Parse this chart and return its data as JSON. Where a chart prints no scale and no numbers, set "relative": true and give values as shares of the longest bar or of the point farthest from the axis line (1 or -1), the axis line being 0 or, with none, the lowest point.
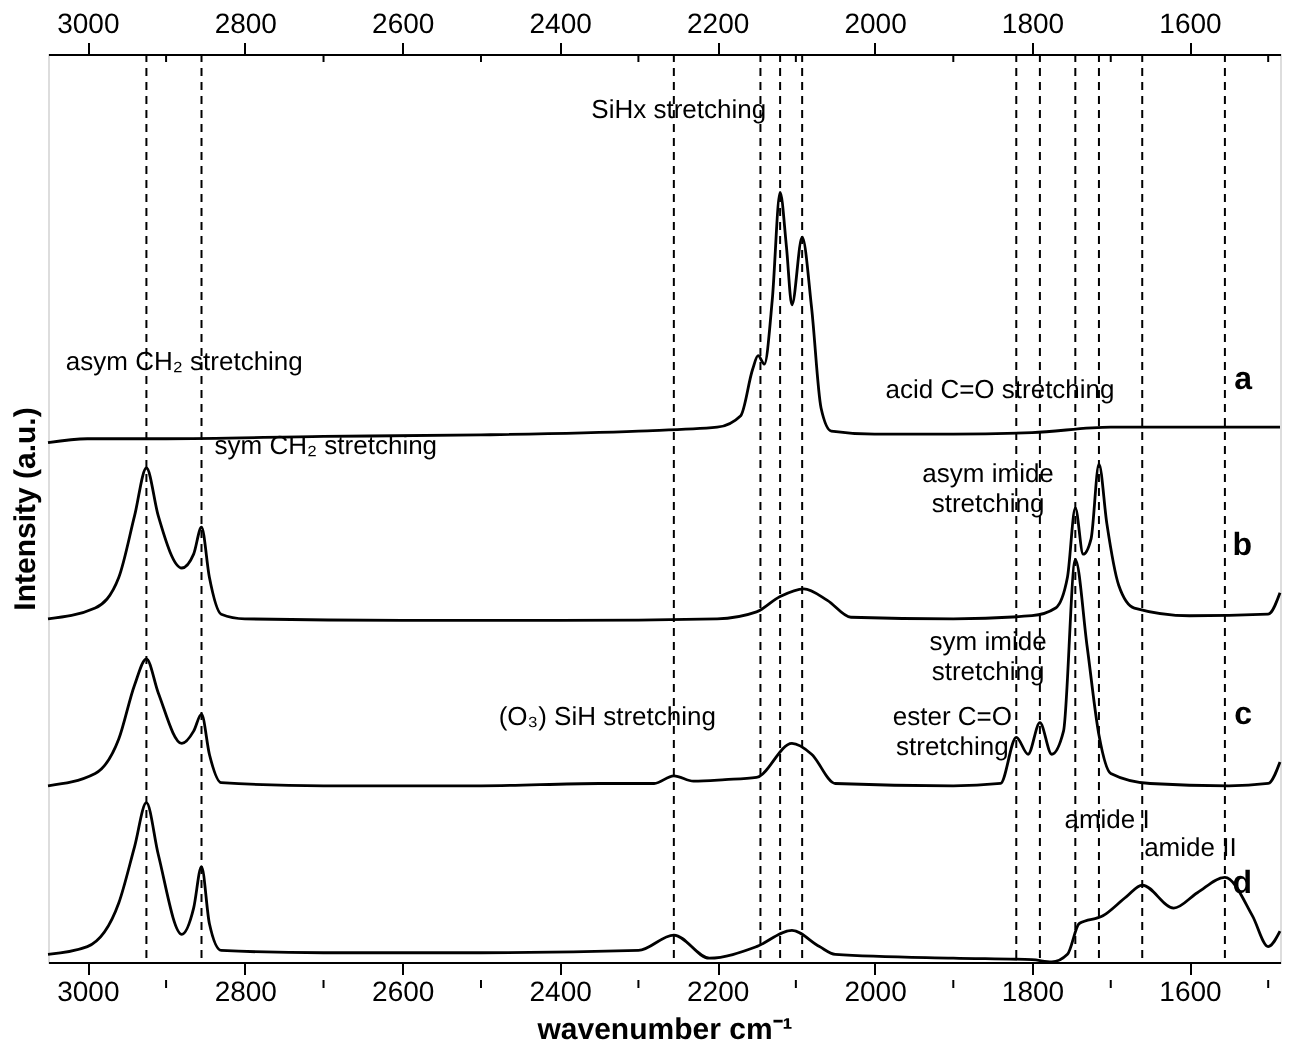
{
  "chart_data": {
    "type": "line",
    "relative": true,
    "xlabel": "wavenumber cm⁻¹",
    "ylabel": "Intensity (a.u.)",
    "xlim": [
      3050,
      1485
    ],
    "x2lim": [
      3050,
      1485
    ],
    "xticks": [
      3000,
      {
        "value": 2900,
        "label": null
      },
      2800,
      {
        "value": 2700,
        "label": null
      },
      2600,
      {
        "value": 2500,
        "label": null
      },
      2400,
      {
        "value": 2300,
        "label": null
      },
      2200,
      {
        "value": 2100,
        "label": null
      },
      2000,
      {
        "value": 1900,
        "label": null
      },
      1800,
      {
        "value": 1700,
        "label": null
      },
      1600,
      {
        "value": 1500,
        "label": null
      }
    ],
    "x2ticks": [
      3000,
      {
        "value": 2900,
        "label": null
      },
      2800,
      {
        "value": 2700,
        "label": null
      },
      2600,
      {
        "value": 2500,
        "label": null
      },
      2400,
      {
        "value": 2300,
        "label": null
      },
      2200,
      {
        "value": 2100,
        "label": null
      },
      2000,
      {
        "value": 1900,
        "label": null
      },
      1800,
      {
        "value": 1700,
        "label": null
      },
      1600,
      {
        "value": 1500,
        "label": null
      }
    ],
    "grid": false,
    "legend": false,
    "line_style": "solid",
    "marker": "none",
    "series": [
      {
        "name": "a",
        "color": "#000000",
        "x": [
          3050,
          3000,
          2900,
          2700,
          2500,
          2300,
          2200,
          2170,
          2155,
          2148,
          2140,
          2130,
          2120,
          2112,
          2105,
          2092,
          2080,
          2068,
          2055,
          2000,
          1900,
          1800,
          1700,
          1600,
          1485
        ],
        "values": [
          0.675,
          0.68,
          0.68,
          0.683,
          0.685,
          0.69,
          0.695,
          0.71,
          0.77,
          0.788,
          0.777,
          0.86,
          1.0,
          0.93,
          0.854,
          0.942,
          0.85,
          0.72,
          0.69,
          0.686,
          0.686,
          0.688,
          0.695,
          0.695,
          0.695
        ]
      },
      {
        "name": "b",
        "color": "#000000",
        "x": [
          3050,
          2990,
          2960,
          2940,
          2925,
          2910,
          2880,
          2865,
          2855,
          2845,
          2830,
          2800,
          2600,
          2400,
          2200,
          2150,
          2120,
          2090,
          2060,
          2030,
          1900,
          1800,
          1770,
          1755,
          1745,
          1735,
          1725,
          1715,
          1705,
          1690,
          1670,
          1600,
          1500,
          1485
        ],
        "values": [
          0.446,
          0.46,
          0.5,
          0.58,
          0.642,
          0.58,
          0.512,
          0.53,
          0.565,
          0.5,
          0.452,
          0.446,
          0.444,
          0.444,
          0.446,
          0.455,
          0.475,
          0.485,
          0.47,
          0.448,
          0.446,
          0.45,
          0.46,
          0.5,
          0.59,
          0.53,
          0.55,
          0.647,
          0.57,
          0.49,
          0.46,
          0.45,
          0.452,
          0.48
        ]
      },
      {
        "name": "c",
        "color": "#000000",
        "x": [
          3050,
          2990,
          2960,
          2940,
          2925,
          2910,
          2880,
          2865,
          2855,
          2845,
          2830,
          2700,
          2500,
          2350,
          2280,
          2255,
          2230,
          2190,
          2150,
          2105,
          2080,
          2050,
          1900,
          1840,
          1820,
          1805,
          1790,
          1775,
          1760,
          1745,
          1730,
          1715,
          1700,
          1650,
          1550,
          1500,
          1485
        ],
        "values": [
          0.229,
          0.245,
          0.29,
          0.36,
          0.394,
          0.35,
          0.284,
          0.3,
          0.322,
          0.27,
          0.233,
          0.229,
          0.229,
          0.232,
          0.232,
          0.242,
          0.235,
          0.237,
          0.24,
          0.284,
          0.27,
          0.232,
          0.229,
          0.232,
          0.292,
          0.27,
          0.311,
          0.27,
          0.3,
          0.523,
          0.41,
          0.295,
          0.245,
          0.232,
          0.229,
          0.232,
          0.26
        ]
      },
      {
        "name": "d",
        "color": "#000000",
        "x": [
          3050,
          3000,
          2960,
          2940,
          2925,
          2910,
          2880,
          2865,
          2855,
          2845,
          2830,
          2700,
          2500,
          2300,
          2255,
          2210,
          2150,
          2105,
          2070,
          2050,
          1900,
          1800,
          1775,
          1755,
          1740,
          1710,
          1680,
          1660,
          1620,
          1590,
          1555,
          1520,
          1500,
          1485
        ],
        "values": [
          0.01,
          0.02,
          0.077,
          0.15,
          0.207,
          0.14,
          0.036,
          0.07,
          0.124,
          0.05,
          0.015,
          0.012,
          0.012,
          0.015,
          0.035,
          0.005,
          0.02,
          0.041,
          0.02,
          0.01,
          0.005,
          0.003,
          0,
          0.01,
          0.05,
          0.06,
          0.085,
          0.1,
          0.07,
          0.09,
          0.11,
          0.06,
          0.02,
          0.04
        ]
      }
    ],
    "ref_lines": [
      {
        "axis": "x",
        "value": 2925,
        "line_style": "dashed"
      },
      {
        "axis": "x",
        "value": 2855,
        "line_style": "dashed"
      },
      {
        "axis": "x",
        "value": 2255,
        "line_style": "dashed"
      },
      {
        "axis": "x",
        "value": 2145,
        "line_style": "dashed"
      },
      {
        "axis": "x",
        "value": 2120,
        "line_style": "dashed"
      },
      {
        "axis": "x",
        "value": 2092,
        "line_style": "dashed"
      },
      {
        "axis": "x",
        "value": 1820,
        "line_style": "dashed"
      },
      {
        "axis": "x",
        "value": 1790,
        "line_style": "dashed"
      },
      {
        "axis": "x",
        "value": 1745,
        "line_style": "dashed"
      },
      {
        "axis": "x",
        "value": 1715,
        "line_style": "dashed"
      },
      {
        "axis": "x",
        "value": 1660,
        "line_style": "dashed"
      },
      {
        "axis": "x",
        "value": 1555,
        "line_style": "dashed"
      }
    ],
    "annotations": [
      "SiHx stretching",
      "asym CH₂ stretching",
      "sym CH₂ stretching",
      "acid C=O stretching",
      "asym imide\nstretching",
      "sym imide\nstretching",
      "ester C=O\nstretching",
      "(O₃) SiH stretching",
      "amide I",
      "amide II"
    ]
  }
}
